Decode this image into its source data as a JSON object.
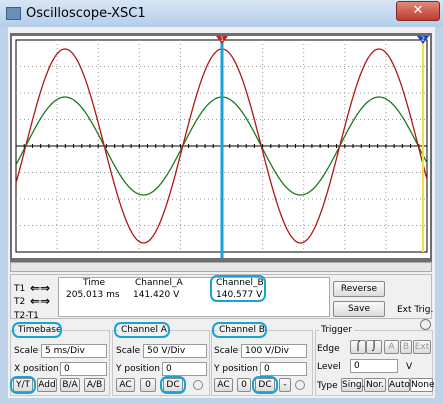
{
  "window": {
    "title": "Oscilloscope-XSC1"
  },
  "markers": [
    "1",
    "2"
  ],
  "cursors": {
    "t1": "T1",
    "t2": "T2",
    "diff": "T2-T1"
  },
  "readout": {
    "headers": [
      "Time",
      "Channel_A",
      "Channel_B"
    ],
    "values": [
      "205.013 ms",
      "141.420 V",
      "140.577 V"
    ]
  },
  "buttons": {
    "reverse": "Reverse",
    "save": "Save"
  },
  "ext_trig": "Ext Trig.",
  "timebase": {
    "title": "Timebase",
    "scale_label": "Scale",
    "scale": "5 ms/Div",
    "xpos_label": "X position",
    "xpos": "0",
    "modes": [
      "Y/T",
      "Add",
      "B/A",
      "A/B"
    ]
  },
  "channel_a": {
    "title": "Channel A",
    "scale_label": "Scale",
    "scale": "50 V/Div",
    "ypos_label": "Y position",
    "ypos": "0",
    "coupling": [
      "AC",
      "0",
      "DC"
    ]
  },
  "channel_b": {
    "title": "Channel B",
    "scale_label": "Scale",
    "scale": "100 V/Div",
    "ypos_label": "Y position",
    "ypos": "0",
    "coupling": [
      "AC",
      "0",
      "DC",
      "-"
    ]
  },
  "trigger": {
    "title": "Trigger",
    "edge_label": "Edge",
    "sources": [
      "A",
      "B",
      "Ext"
    ],
    "level_label": "Level",
    "level": "0",
    "level_unit": "V",
    "type_label": "Type",
    "types": [
      "Sing.",
      "Nor.",
      "Auto",
      "None"
    ]
  }
}
